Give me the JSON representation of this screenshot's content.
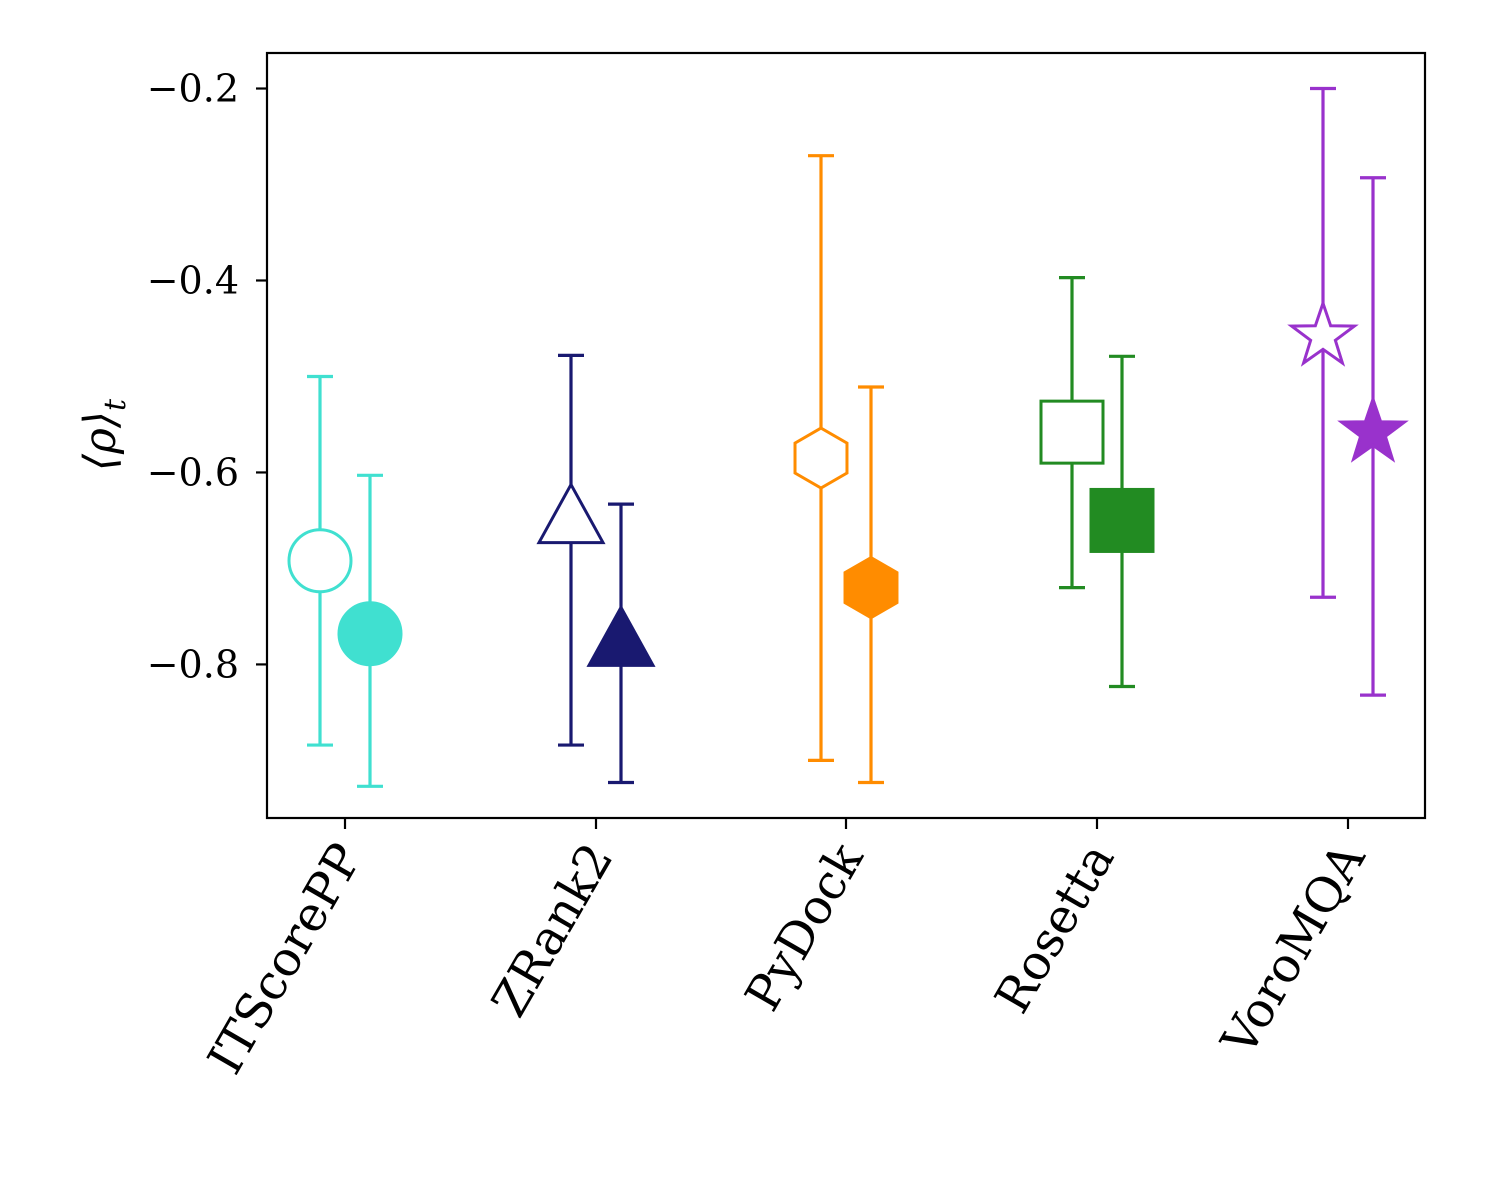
{
  "chart_data": {
    "type": "scatter",
    "title": "",
    "xlabel": "",
    "ylabel": "⟨ρ⟩",
    "ylabel_sub": "t",
    "ylim": [
      -0.96,
      -0.163
    ],
    "yticks": [
      -0.8,
      -0.6,
      -0.4,
      -0.2
    ],
    "ytick_labels": [
      "−0.8",
      "−0.6",
      "−0.4",
      "−0.2"
    ],
    "categories": [
      "ITScorePP",
      "ZRank2",
      "PyDock",
      "Rosetta",
      "VoroMQA"
    ],
    "colors": [
      "#40e0d0",
      "#191970",
      "#ff8c00",
      "#228b22",
      "#9932cc"
    ],
    "markers": [
      "circle",
      "triangle",
      "hexagon",
      "square",
      "star"
    ],
    "series": [
      {
        "name": "open",
        "fill": "none",
        "values": [
          -0.692,
          -0.647,
          -0.585,
          -0.558,
          -0.455
        ],
        "err_low": [
          -0.884,
          -0.884,
          -0.9,
          -0.72,
          -0.73
        ],
        "err_high": [
          -0.5,
          -0.478,
          -0.27,
          -0.397,
          -0.2
        ]
      },
      {
        "name": "filled",
        "fill": "solid",
        "values": [
          -0.768,
          -0.775,
          -0.72,
          -0.65,
          -0.555
        ],
        "err_low": [
          -0.927,
          -0.923,
          -0.923,
          -0.823,
          -0.832
        ],
        "err_high": [
          -0.603,
          -0.633,
          -0.511,
          -0.479,
          -0.293
        ]
      }
    ]
  }
}
